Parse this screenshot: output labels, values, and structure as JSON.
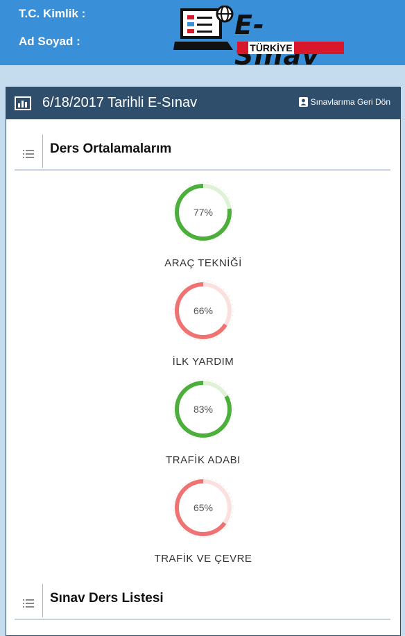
{
  "header": {
    "tc_label": "T.C. Kimlik :",
    "name_label": "Ad Soyad  :",
    "logo_text": "E-Sınav",
    "logo_sub": "TÜRKİYE"
  },
  "card": {
    "title": "6/18/2017 Tarihli E-Sınav",
    "back_label": "Sınavlarıma Geri Dön"
  },
  "averages_section": {
    "title": "Ders Ortalamalarım"
  },
  "subjects": [
    {
      "name": "ARAÇ TEKNİĞİ",
      "percent_label": "77%",
      "value": 77,
      "status": "pass"
    },
    {
      "name": "İLK YARDIM",
      "percent_label": "66%",
      "value": 66,
      "status": "fail"
    },
    {
      "name": "TRAFİK ADABI",
      "percent_label": "83%",
      "value": 83,
      "status": "pass"
    },
    {
      "name": "TRAFİK VE ÇEVRE",
      "percent_label": "65%",
      "value": 65,
      "status": "fail"
    }
  ],
  "list_section": {
    "title": "Sınav Ders Listesi"
  },
  "colors": {
    "header_bg": "#3a8fd9",
    "card_head_bg": "#2f4e6b",
    "pass": "#4caf3c",
    "pass_track": "#dff2d8",
    "fail": "#f07373",
    "fail_track": "#fbe0e0"
  }
}
